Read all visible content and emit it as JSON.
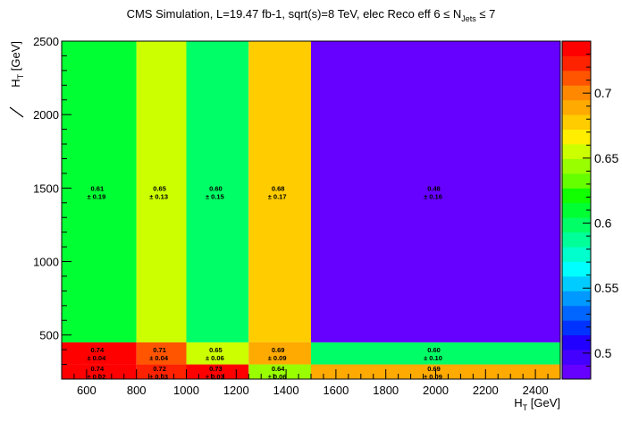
{
  "chart_data": {
    "type": "heatmap",
    "title": "CMS Simulation, L=19.47 fb-1, sqrt(s)=8 TeV, elec Reco eff 6 ≤ N_Jets ≤ 7",
    "title_parts": {
      "main": "CMS Simulation, L=19.47 fb-1, sqrt(s)=8 TeV, elec Reco eff 6 ≤ N",
      "sub": "Jets",
      "tail": " ≤ 7"
    },
    "xlabel": {
      "main": "H",
      "sub": "T",
      "tail": " [GeV]"
    },
    "ylabel": {
      "main": "H",
      "sub": "T",
      "tail": " [GeV]",
      "slashed": true
    },
    "xlim": [
      500,
      2500
    ],
    "ylim": [
      200,
      2500
    ],
    "x_ticks": [
      600,
      800,
      1000,
      1200,
      1400,
      1600,
      1800,
      2000,
      2200,
      2400
    ],
    "x_tick_labels": [
      "600",
      "800",
      "1000",
      "1200",
      "1400",
      "1600",
      "1800",
      "2000",
      "2200",
      "2400"
    ],
    "y_ticks": [
      500,
      1000,
      1500,
      2000,
      2500
    ],
    "y_tick_labels": [
      "500",
      "1000",
      "1500",
      "2000",
      "2500"
    ],
    "x_bin_edges": [
      500,
      800,
      1000,
      1250,
      1500,
      2500
    ],
    "y_bin_edges": [
      200,
      300,
      450,
      2500
    ],
    "z": [
      [
        0.74,
        0.72,
        0.73,
        0.64,
        0.69
      ],
      [
        0.74,
        0.71,
        0.65,
        0.69,
        0.6
      ],
      [
        0.61,
        0.65,
        0.6,
        0.68,
        0.48
      ]
    ],
    "errors": [
      [
        0.02,
        0.03,
        0.03,
        0.06,
        0.09
      ],
      [
        0.04,
        0.04,
        0.06,
        0.09,
        0.1
      ],
      [
        0.19,
        0.13,
        0.15,
        0.17,
        0.16
      ]
    ],
    "value_labels": [
      [
        "0.74",
        "0.72",
        "0.73",
        "0.64",
        "0.69"
      ],
      [
        "0.74",
        "0.71",
        "0.65",
        "0.69",
        "0.60"
      ],
      [
        "0.61",
        "0.65",
        "0.60",
        "0.68",
        "0.48"
      ]
    ],
    "error_labels": [
      [
        "±  0.02",
        "±  0.03",
        "±  0.03",
        "±  0.06",
        "±  0.09"
      ],
      [
        "±  0.04",
        "±  0.04",
        "±  0.06",
        "±  0.09",
        "±  0.10"
      ],
      [
        "±  0.19",
        "±  0.13",
        "±  0.15",
        "±  0.17",
        "±  0.16"
      ]
    ],
    "colorbar": {
      "zlim": [
        0.48,
        0.74
      ],
      "ticks": [
        0.5,
        0.55,
        0.6,
        0.65,
        0.7
      ],
      "tick_labels": [
        "0.5",
        "0.55",
        "0.6",
        "0.65",
        "0.7"
      ],
      "colors": [
        "#6600ff",
        "#4400ff",
        "#2200ff",
        "#0033ff",
        "#0066ff",
        "#0099ff",
        "#00ccff",
        "#00ffff",
        "#00ffcc",
        "#00ff99",
        "#00ff66",
        "#00ff33",
        "#11ff00",
        "#66ff00",
        "#99ff00",
        "#ccff00",
        "#ffee00",
        "#ffcc00",
        "#ffaa00",
        "#ff8800",
        "#ff5500",
        "#ff2200",
        "#ff0000"
      ]
    },
    "grid": false,
    "legend": "colorbar-right"
  }
}
